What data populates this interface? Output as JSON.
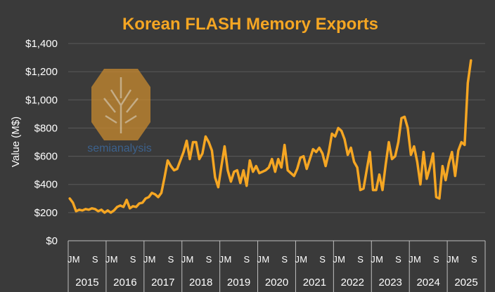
{
  "colors": {
    "background": "#3a3a3a",
    "line": "#f5a623",
    "title": "#f5a623",
    "grid": "#5a5a5a",
    "text": "#ffffff",
    "logo": "#c98a2e",
    "logo_text": "#3d6fa8"
  },
  "logo": {
    "text": "semianalysis"
  },
  "chart_data": {
    "type": "line",
    "title": "Korean FLASH Memory Exports",
    "xlabel": "",
    "ylabel": "Value (M$)",
    "ylim": [
      0,
      1400
    ],
    "y_ticks": [
      "$0",
      "$200",
      "$400",
      "$600",
      "$800",
      "$1,000",
      "$1,200",
      "$1,400"
    ],
    "grid": "horizontal",
    "month_tick_labels": [
      "J",
      "M",
      "S"
    ],
    "years": [
      "2015",
      "2016",
      "2017",
      "2018",
      "2019",
      "2020",
      "2021",
      "2022",
      "2023",
      "2024",
      "2025"
    ],
    "series": [
      {
        "values": [
          300,
          270,
          210,
          220,
          215,
          225,
          220,
          230,
          225,
          210,
          220,
          200,
          215,
          200,
          215,
          240,
          250,
          240,
          290,
          230,
          245,
          240,
          265,
          270,
          300,
          310,
          340,
          330,
          310,
          340,
          450,
          570,
          530,
          500,
          510,
          570,
          630,
          710,
          580,
          700,
          700,
          580,
          620,
          740,
          700,
          640,
          450,
          380,
          530,
          670,
          500,
          420,
          490,
          500,
          410,
          500,
          390,
          570,
          490,
          530,
          480,
          490,
          500,
          520,
          580,
          490,
          580,
          520,
          680,
          500,
          480,
          460,
          510,
          590,
          600,
          510,
          580,
          650,
          630,
          660,
          620,
          530,
          630,
          760,
          740,
          800,
          780,
          720,
          610,
          660,
          560,
          520,
          360,
          370,
          500,
          630,
          360,
          360,
          470,
          360,
          540,
          700,
          580,
          600,
          700,
          870,
          880,
          800,
          610,
          670,
          560,
          400,
          630,
          440,
          520,
          620,
          310,
          300,
          530,
          430,
          550,
          630,
          460,
          640,
          700,
          680,
          1120,
          1280
        ]
      }
    ]
  }
}
